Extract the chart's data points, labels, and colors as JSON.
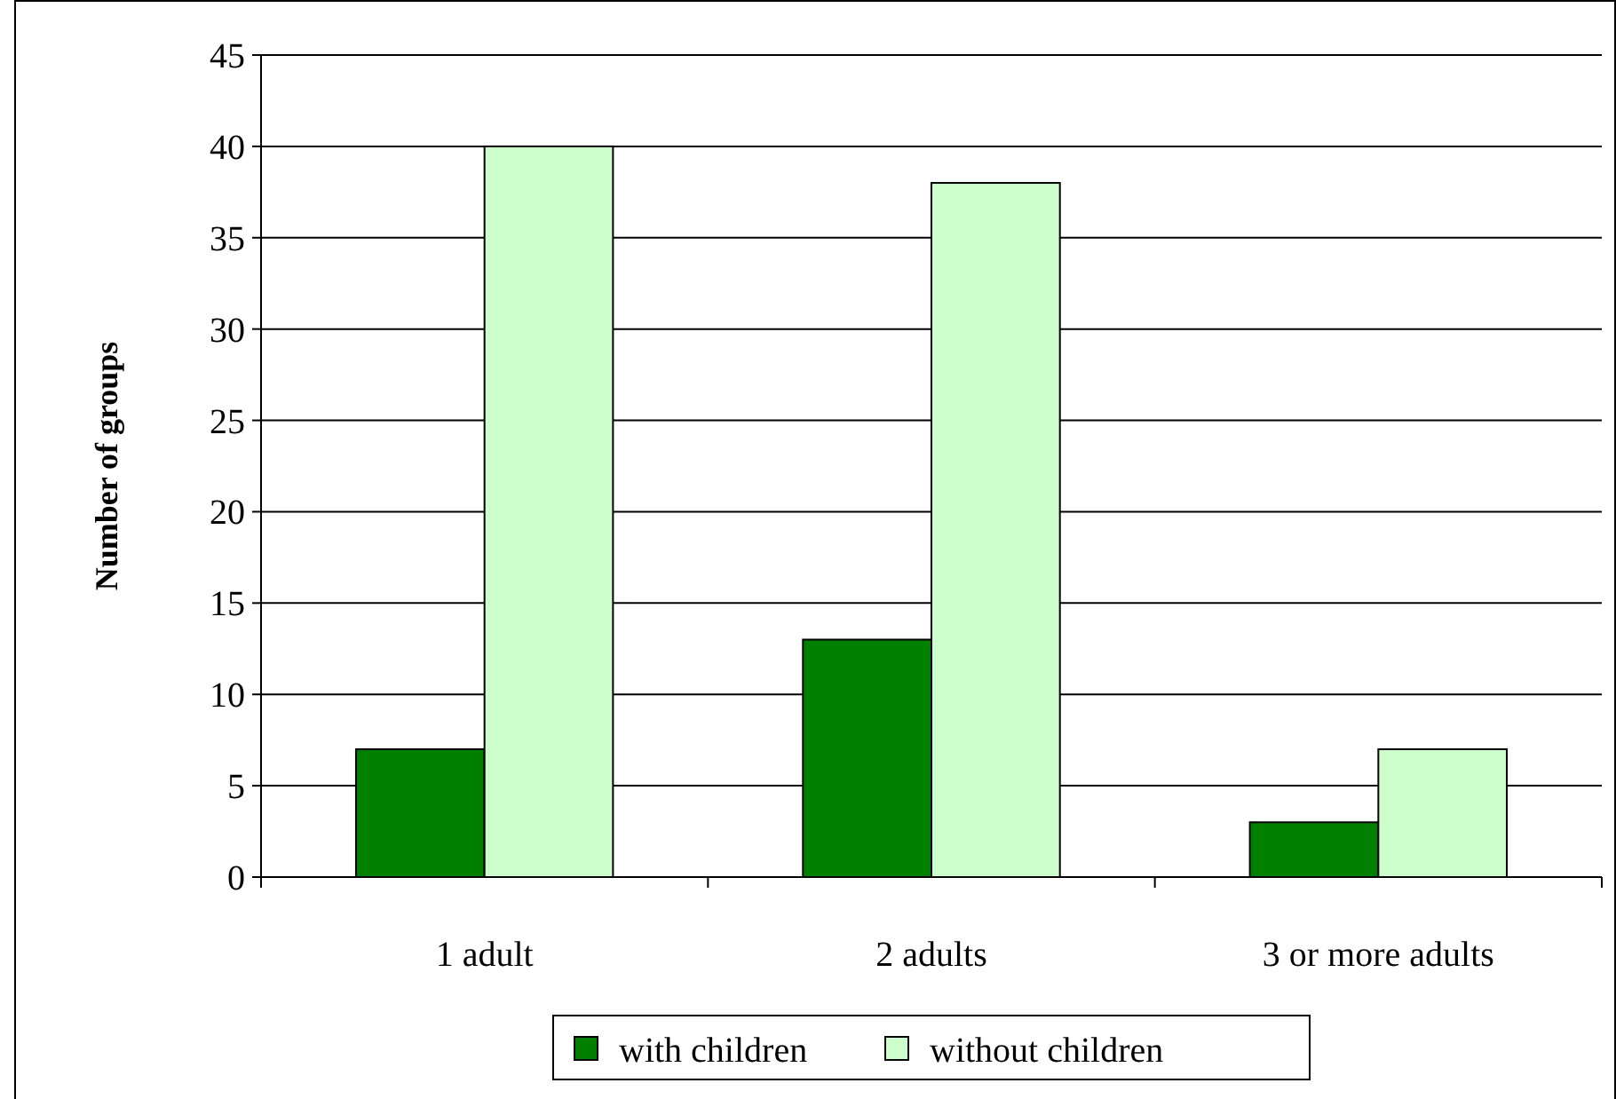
{
  "chart_data": {
    "type": "bar",
    "ylabel": "Number of groups",
    "categories": [
      "1 adult",
      "2 adults",
      "3 or more adults"
    ],
    "series": [
      {
        "name": "with children",
        "color": "#008000",
        "values": [
          7,
          13,
          3
        ]
      },
      {
        "name": "without children",
        "color": "#ccffcc",
        "values": [
          40,
          38,
          7
        ]
      }
    ],
    "ylim": [
      0,
      45
    ],
    "yticks": [
      0,
      5,
      10,
      15,
      20,
      25,
      30,
      35,
      40,
      45
    ],
    "grid": "y",
    "legend": "bottom"
  }
}
